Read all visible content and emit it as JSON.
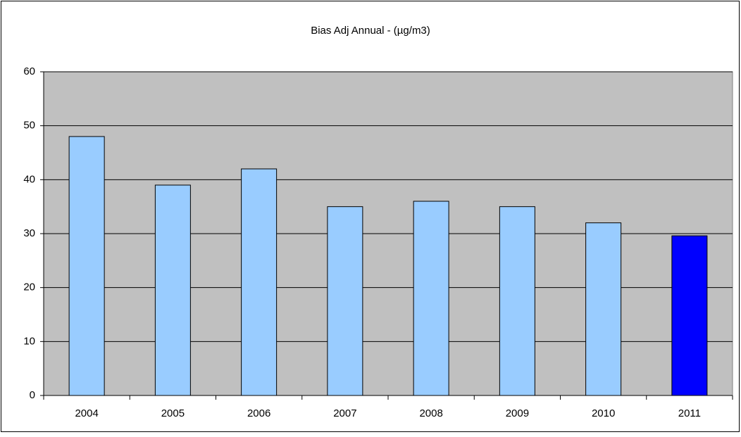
{
  "chart_data": {
    "type": "bar",
    "title": "Bias Adj Annual - (µg/m3)",
    "categories": [
      "2004",
      "2005",
      "2006",
      "2007",
      "2008",
      "2009",
      "2010",
      "2011"
    ],
    "values": [
      48,
      39,
      42,
      35,
      36,
      35,
      32,
      29.6
    ],
    "colors": [
      "#99ccff",
      "#99ccff",
      "#99ccff",
      "#99ccff",
      "#99ccff",
      "#99ccff",
      "#99ccff",
      "#0000ff"
    ],
    "ylim": [
      0,
      60
    ],
    "yticks": [
      0,
      10,
      20,
      30,
      40,
      50,
      60
    ],
    "grid": true
  }
}
